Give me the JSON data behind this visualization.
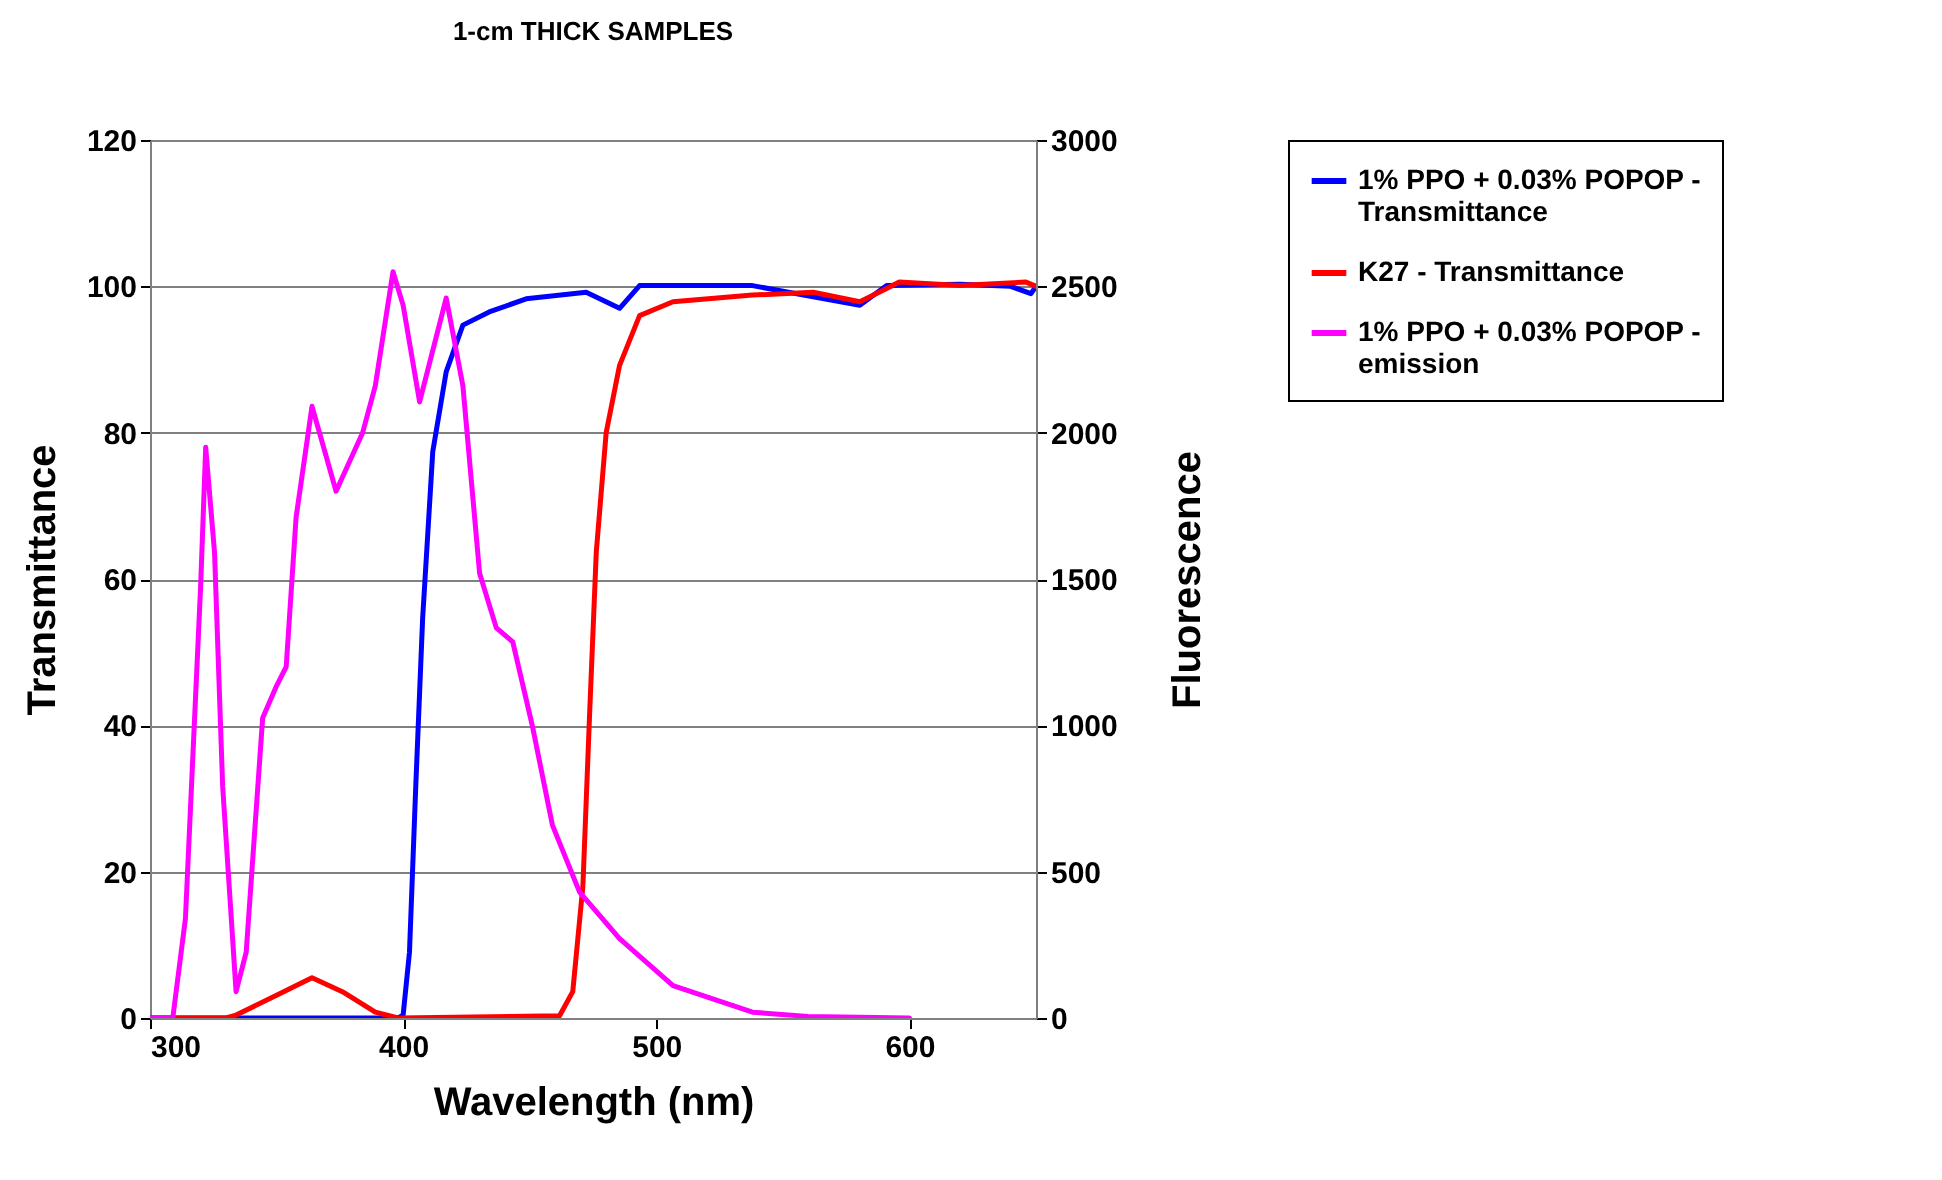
{
  "chart_data": {
    "type": "line",
    "title": "1-cm THICK SAMPLES",
    "xlabel": "Wavelength (nm)",
    "ylabel": "Transmittance",
    "y2label": "Fluorescence",
    "xlim": [
      300,
      650
    ],
    "xticks": [
      300,
      400,
      500,
      600
    ],
    "ylim": [
      0,
      120
    ],
    "yticks": [
      0,
      20,
      40,
      60,
      80,
      100,
      120
    ],
    "y2lim": [
      0,
      3000
    ],
    "y2ticks": [
      0,
      500,
      1000,
      1500,
      2000,
      2500,
      3000
    ],
    "grid": "y",
    "legend": "right",
    "line_style": "solid",
    "series": [
      {
        "name": "1% PPO + 0.03% POPOP - Transmittance",
        "color": "#0000ff",
        "x": [
          300,
          398,
          400,
          402.5,
          405,
          407.7,
          411.7,
          417,
          423.6,
          434,
          448.6,
          472.3,
          485.5,
          493.4,
          538,
          580.4,
          591,
          620,
          640,
          648,
          650
        ],
        "values": [
          0,
          0,
          0.4,
          9,
          31.8,
          54.6,
          77.4,
          88.3,
          94.7,
          96.5,
          98.3,
          99.2,
          97,
          100.1,
          100.1,
          97.4,
          100.1,
          100.3,
          100,
          99,
          100
        ]
      },
      {
        "name": "K27 - Transmittance",
        "color": "#ff0000",
        "x": [
          300,
          330,
          334,
          350,
          364,
          376,
          389,
          398,
          461.8,
          467,
          471,
          473.6,
          476.3,
          480.2,
          485.5,
          493.4,
          506.6,
          538,
          562,
          580.4,
          591,
          596,
          620,
          646,
          650
        ],
        "values": [
          0,
          0,
          0.4,
          3.1,
          5.5,
          3.6,
          0.8,
          0,
          0.3,
          3.6,
          18,
          41,
          63.7,
          80,
          89.2,
          96,
          97.9,
          98.8,
          99.2,
          97.9,
          99.7,
          100.6,
          100.1,
          100.6,
          100
        ]
      },
      {
        "name": "1% PPO + 0.03% POPOP - emission",
        "color": "#ff00ff",
        "axis": "y2",
        "x": [
          300,
          309,
          314,
          320,
          322,
          325.5,
          328.7,
          334,
          338,
          344.5,
          350,
          353.8,
          357.7,
          364,
          373.5,
          384,
          389,
          396,
          400,
          406.5,
          417,
          423.6,
          430.2,
          436.8,
          443.3,
          451,
          459,
          469.7,
          485.5,
          506.6,
          538,
          560,
          600
        ],
        "values": [
          0,
          0,
          340,
          1475,
          1950,
          1590,
          792,
          90,
          225,
          1025,
          1135,
          1200,
          1710,
          2090,
          1800,
          2000,
          2160,
          2550,
          2435,
          2105,
          2460,
          2160,
          1520,
          1333,
          1285,
          1000,
          658,
          430,
          271,
          111,
          20,
          5,
          0
        ]
      }
    ]
  }
}
